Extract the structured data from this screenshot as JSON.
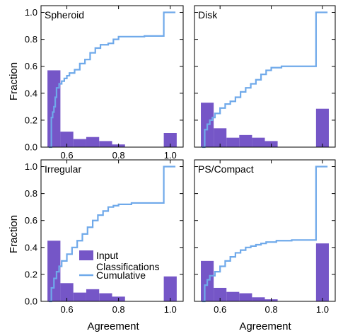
{
  "figure": {
    "xlabel": "Agreement",
    "ylabel": "Fraction",
    "legend": {
      "hist_label": "Input\nClassifications",
      "line_label": "Cumulative",
      "placement": "lower-left panel, center-left"
    }
  },
  "colors": {
    "bar": "#7556c7",
    "line": "#6fa9ea",
    "frame": "#000000"
  },
  "chart_data": [
    {
      "type": "bar",
      "title": "Spheroid",
      "xlim": [
        0.5,
        1.05
      ],
      "ylim": [
        0,
        1.05
      ],
      "xticks": [
        {
          "v": 0.6,
          "t": "0.6"
        },
        {
          "v": 0.8,
          "t": "0.8"
        },
        {
          "v": 1.0,
          "t": "1.0"
        }
      ],
      "yticks": [
        {
          "v": 0,
          "t": "0.0"
        },
        {
          "v": 0.2,
          "t": "0.2"
        },
        {
          "v": 0.4,
          "t": "0.4"
        },
        {
          "v": 0.6,
          "t": "0.6"
        },
        {
          "v": 0.8,
          "t": "0.8"
        },
        {
          "v": 1.0,
          "t": "1.0"
        }
      ],
      "bins": [
        [
          0.525,
          0.575,
          0.57
        ],
        [
          0.575,
          0.625,
          0.115
        ],
        [
          0.625,
          0.675,
          0.06
        ],
        [
          0.675,
          0.725,
          0.075
        ],
        [
          0.725,
          0.775,
          0.045
        ],
        [
          0.775,
          0.825,
          0.02
        ],
        [
          0.975,
          1.025,
          0.105
        ]
      ],
      "cumulative": [
        [
          0.53,
          0.0
        ],
        [
          0.54,
          0.22
        ],
        [
          0.545,
          0.26
        ],
        [
          0.55,
          0.3
        ],
        [
          0.555,
          0.37
        ],
        [
          0.56,
          0.44
        ],
        [
          0.57,
          0.47
        ],
        [
          0.58,
          0.49
        ],
        [
          0.59,
          0.51
        ],
        [
          0.6,
          0.53
        ],
        [
          0.61,
          0.55
        ],
        [
          0.63,
          0.575
        ],
        [
          0.65,
          0.62
        ],
        [
          0.67,
          0.65
        ],
        [
          0.69,
          0.7
        ],
        [
          0.71,
          0.735
        ],
        [
          0.73,
          0.76
        ],
        [
          0.76,
          0.77
        ],
        [
          0.78,
          0.8
        ],
        [
          0.8,
          0.82
        ],
        [
          0.85,
          0.82
        ],
        [
          0.9,
          0.825
        ],
        [
          0.975,
          0.83
        ],
        [
          0.975,
          1.0
        ],
        [
          1.02,
          1.0
        ]
      ]
    },
    {
      "type": "bar",
      "title": "Disk",
      "xlim": [
        0.5,
        1.05
      ],
      "ylim": [
        0,
        1.05
      ],
      "xticks": [
        {
          "v": 0.6,
          "t": ""
        },
        {
          "v": 0.8,
          "t": ""
        },
        {
          "v": 1.0,
          "t": ""
        }
      ],
      "yticks": [
        {
          "v": 0,
          "t": ""
        },
        {
          "v": 0.2,
          "t": ""
        },
        {
          "v": 0.4,
          "t": ""
        },
        {
          "v": 0.6,
          "t": ""
        },
        {
          "v": 0.8,
          "t": ""
        },
        {
          "v": 1.0,
          "t": ""
        }
      ],
      "bins": [
        [
          0.525,
          0.575,
          0.33
        ],
        [
          0.575,
          0.625,
          0.14
        ],
        [
          0.625,
          0.675,
          0.07
        ],
        [
          0.675,
          0.725,
          0.09
        ],
        [
          0.725,
          0.775,
          0.07
        ],
        [
          0.775,
          0.825,
          0.045
        ],
        [
          0.975,
          1.025,
          0.285
        ]
      ],
      "cumulative": [
        [
          0.53,
          0.0
        ],
        [
          0.54,
          0.13
        ],
        [
          0.55,
          0.17
        ],
        [
          0.56,
          0.2
        ],
        [
          0.57,
          0.22
        ],
        [
          0.58,
          0.25
        ],
        [
          0.6,
          0.29
        ],
        [
          0.62,
          0.32
        ],
        [
          0.64,
          0.34
        ],
        [
          0.66,
          0.37
        ],
        [
          0.68,
          0.41
        ],
        [
          0.7,
          0.44
        ],
        [
          0.72,
          0.47
        ],
        [
          0.74,
          0.5
        ],
        [
          0.76,
          0.54
        ],
        [
          0.78,
          0.57
        ],
        [
          0.8,
          0.59
        ],
        [
          0.84,
          0.6
        ],
        [
          0.9,
          0.6
        ],
        [
          0.975,
          0.6
        ],
        [
          0.975,
          1.0
        ],
        [
          1.02,
          1.0
        ]
      ]
    },
    {
      "type": "bar",
      "title": "Irregular",
      "xlim": [
        0.5,
        1.05
      ],
      "ylim": [
        0,
        1.05
      ],
      "xticks": [
        {
          "v": 0.6,
          "t": "0.6"
        },
        {
          "v": 0.8,
          "t": "0.8"
        },
        {
          "v": 1.0,
          "t": "1.0"
        }
      ],
      "yticks": [
        {
          "v": 0,
          "t": "0.0"
        },
        {
          "v": 0.2,
          "t": "0.2"
        },
        {
          "v": 0.4,
          "t": "0.4"
        },
        {
          "v": 0.6,
          "t": "0.6"
        },
        {
          "v": 0.8,
          "t": "0.8"
        },
        {
          "v": 1.0,
          "t": "1.0"
        }
      ],
      "bins": [
        [
          0.525,
          0.575,
          0.45
        ],
        [
          0.575,
          0.625,
          0.135
        ],
        [
          0.625,
          0.675,
          0.065
        ],
        [
          0.675,
          0.725,
          0.09
        ],
        [
          0.725,
          0.775,
          0.06
        ],
        [
          0.775,
          0.825,
          0.035
        ],
        [
          0.975,
          1.025,
          0.185
        ]
      ],
      "cumulative": [
        [
          0.53,
          0.0
        ],
        [
          0.54,
          0.1
        ],
        [
          0.55,
          0.17
        ],
        [
          0.56,
          0.22
        ],
        [
          0.57,
          0.26
        ],
        [
          0.58,
          0.3
        ],
        [
          0.6,
          0.35
        ],
        [
          0.62,
          0.4
        ],
        [
          0.64,
          0.45
        ],
        [
          0.66,
          0.5
        ],
        [
          0.68,
          0.55
        ],
        [
          0.7,
          0.6
        ],
        [
          0.72,
          0.64
        ],
        [
          0.74,
          0.67
        ],
        [
          0.76,
          0.7
        ],
        [
          0.78,
          0.71
        ],
        [
          0.8,
          0.72
        ],
        [
          0.85,
          0.73
        ],
        [
          0.9,
          0.73
        ],
        [
          0.975,
          0.735
        ],
        [
          0.975,
          1.0
        ],
        [
          1.02,
          1.0
        ]
      ]
    },
    {
      "type": "bar",
      "title": "PS/Compact",
      "xlim": [
        0.5,
        1.05
      ],
      "ylim": [
        0,
        1.05
      ],
      "xticks": [
        {
          "v": 0.6,
          "t": "0.6"
        },
        {
          "v": 0.8,
          "t": "0.8"
        },
        {
          "v": 1.0,
          "t": "1.0"
        }
      ],
      "yticks": [
        {
          "v": 0,
          "t": ""
        },
        {
          "v": 0.2,
          "t": ""
        },
        {
          "v": 0.4,
          "t": ""
        },
        {
          "v": 0.6,
          "t": ""
        },
        {
          "v": 0.8,
          "t": ""
        },
        {
          "v": 1.0,
          "t": ""
        }
      ],
      "bins": [
        [
          0.525,
          0.575,
          0.3
        ],
        [
          0.575,
          0.625,
          0.1
        ],
        [
          0.625,
          0.675,
          0.07
        ],
        [
          0.675,
          0.725,
          0.06
        ],
        [
          0.725,
          0.775,
          0.03
        ],
        [
          0.775,
          0.825,
          0.015
        ],
        [
          0.975,
          1.025,
          0.43
        ]
      ],
      "cumulative": [
        [
          0.53,
          0.0
        ],
        [
          0.54,
          0.12
        ],
        [
          0.55,
          0.16
        ],
        [
          0.56,
          0.19
        ],
        [
          0.58,
          0.22
        ],
        [
          0.6,
          0.26
        ],
        [
          0.62,
          0.3
        ],
        [
          0.64,
          0.33
        ],
        [
          0.66,
          0.36
        ],
        [
          0.68,
          0.38
        ],
        [
          0.7,
          0.4
        ],
        [
          0.72,
          0.41
        ],
        [
          0.74,
          0.42
        ],
        [
          0.76,
          0.43
        ],
        [
          0.78,
          0.44
        ],
        [
          0.82,
          0.45
        ],
        [
          0.88,
          0.455
        ],
        [
          0.975,
          0.46
        ],
        [
          0.975,
          1.0
        ],
        [
          1.02,
          1.0
        ]
      ]
    }
  ]
}
